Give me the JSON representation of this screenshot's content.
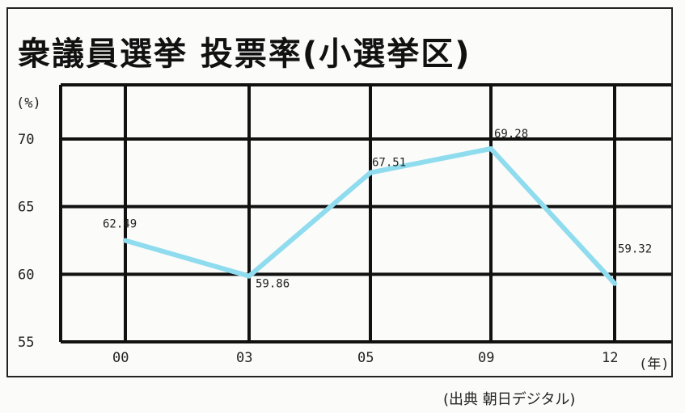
{
  "chart_data": {
    "type": "line",
    "title": "衆議員選挙 投票率(小選挙区)",
    "ylabel": "(%)",
    "xlabel": "(年)",
    "source": "(出典 朝日デジタル)",
    "categories": [
      "00",
      "03",
      "05",
      "09",
      "12"
    ],
    "yticks": [
      "70",
      "65",
      "60",
      "55"
    ],
    "ytick_values": [
      70,
      65,
      60,
      55
    ],
    "ylim": [
      55,
      74
    ],
    "series": [
      {
        "values": [
          62.49,
          59.86,
          67.51,
          69.28,
          59.32
        ],
        "labels": [
          "62.49",
          "59.86",
          "67.51",
          "69.28",
          "59.32"
        ],
        "color": "#8fdcef"
      }
    ],
    "grid": true
  }
}
